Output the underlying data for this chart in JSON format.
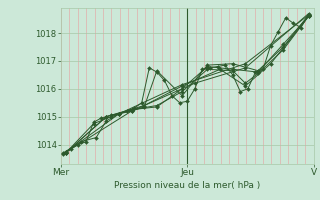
{
  "background_color": "#cce8d8",
  "plot_bg_color": "#cce8d8",
  "line_color": "#2d5a2d",
  "marker_color": "#2d5a2d",
  "grid_color_v": "#e8a0a0",
  "grid_color_h": "#a8c8a8",
  "axis_label_color": "#2d5a2d",
  "tick_color": "#2d5a2d",
  "xlabel": "Pression niveau de la mer( hPa )",
  "ylim": [
    1013.3,
    1018.9
  ],
  "yticks": [
    1014,
    1015,
    1016,
    1017,
    1018
  ],
  "xtick_labels": [
    "Mer",
    "Jeu",
    "V"
  ],
  "xtick_positions": [
    0.0,
    0.5,
    1.0
  ],
  "num_vgrid": 30,
  "series": [
    [
      [
        0.01,
        1013.65
      ],
      [
        0.04,
        1013.85
      ],
      [
        0.07,
        1014.0
      ],
      [
        0.1,
        1014.1
      ],
      [
        0.13,
        1014.8
      ],
      [
        0.16,
        1014.95
      ],
      [
        0.18,
        1015.0
      ],
      [
        0.2,
        1015.05
      ],
      [
        0.23,
        1015.1
      ],
      [
        0.26,
        1015.2
      ],
      [
        0.29,
        1015.3
      ],
      [
        0.32,
        1015.5
      ],
      [
        0.35,
        1016.75
      ],
      [
        0.38,
        1016.6
      ],
      [
        0.41,
        1016.3
      ],
      [
        0.44,
        1015.75
      ],
      [
        0.47,
        1015.5
      ],
      [
        0.5,
        1015.55
      ],
      [
        0.53,
        1016.0
      ],
      [
        0.56,
        1016.7
      ],
      [
        0.59,
        1016.75
      ],
      [
        0.62,
        1016.8
      ],
      [
        0.65,
        1016.85
      ],
      [
        0.68,
        1016.5
      ],
      [
        0.71,
        1015.9
      ],
      [
        0.74,
        1016.0
      ],
      [
        0.77,
        1016.6
      ],
      [
        0.8,
        1016.7
      ],
      [
        0.83,
        1017.55
      ],
      [
        0.86,
        1018.05
      ],
      [
        0.89,
        1018.55
      ],
      [
        0.92,
        1018.35
      ],
      [
        0.95,
        1018.2
      ],
      [
        0.98,
        1018.65
      ]
    ],
    [
      [
        0.01,
        1013.7
      ],
      [
        0.08,
        1014.1
      ],
      [
        0.14,
        1014.25
      ],
      [
        0.18,
        1014.85
      ],
      [
        0.23,
        1015.1
      ],
      [
        0.28,
        1015.2
      ],
      [
        0.33,
        1015.35
      ],
      [
        0.38,
        1016.65
      ],
      [
        0.48,
        1015.75
      ],
      [
        0.58,
        1016.85
      ],
      [
        0.68,
        1016.9
      ],
      [
        0.78,
        1016.65
      ],
      [
        0.88,
        1017.5
      ],
      [
        0.98,
        1018.65
      ]
    ],
    [
      [
        0.02,
        1013.7
      ],
      [
        0.13,
        1014.75
      ],
      [
        0.2,
        1015.0
      ],
      [
        0.28,
        1015.25
      ],
      [
        0.38,
        1015.4
      ],
      [
        0.48,
        1015.9
      ],
      [
        0.58,
        1016.7
      ],
      [
        0.68,
        1016.65
      ],
      [
        0.73,
        1016.2
      ],
      [
        0.78,
        1016.55
      ],
      [
        0.88,
        1017.4
      ],
      [
        0.98,
        1018.6
      ]
    ],
    [
      [
        0.02,
        1013.7
      ],
      [
        0.18,
        1015.0
      ],
      [
        0.28,
        1015.25
      ],
      [
        0.38,
        1015.35
      ],
      [
        0.48,
        1016.0
      ],
      [
        0.58,
        1016.8
      ],
      [
        0.68,
        1016.7
      ],
      [
        0.78,
        1016.6
      ],
      [
        0.88,
        1017.6
      ],
      [
        0.98,
        1018.6
      ]
    ],
    [
      [
        0.02,
        1013.7
      ],
      [
        0.18,
        1015.0
      ],
      [
        0.33,
        1015.4
      ],
      [
        0.48,
        1016.1
      ],
      [
        0.63,
        1016.7
      ],
      [
        0.73,
        1016.1
      ],
      [
        0.83,
        1016.9
      ],
      [
        0.98,
        1018.6
      ]
    ],
    [
      [
        0.02,
        1013.72
      ],
      [
        0.23,
        1015.1
      ],
      [
        0.48,
        1016.15
      ],
      [
        0.73,
        1016.9
      ],
      [
        0.98,
        1018.65
      ]
    ],
    [
      [
        0.02,
        1013.72
      ],
      [
        0.28,
        1015.2
      ],
      [
        0.53,
        1016.2
      ],
      [
        0.73,
        1016.75
      ],
      [
        0.98,
        1018.7
      ]
    ]
  ],
  "vline_pos": 0.5,
  "vline_color": "#2d5a2d"
}
